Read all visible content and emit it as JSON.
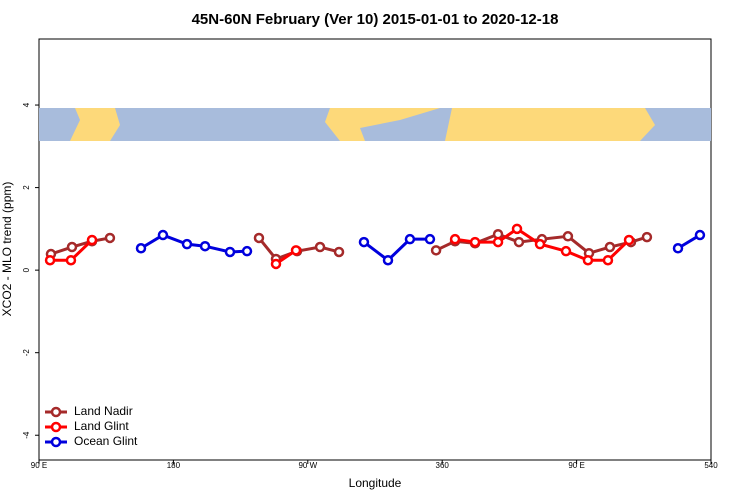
{
  "chart_data": {
    "type": "line",
    "title": "45N-60N February (Ver 10)   2015-01-01 to 2020-12-18",
    "x_label": "Longitude",
    "y_label": "XCO2 - MLO trend (ppm)",
    "xlim": [
      90,
      540
    ],
    "ylim": [
      -4.6,
      5.6
    ],
    "xticks": [
      {
        "value": 90,
        "label": "90 E"
      },
      180,
      {
        "value": 270,
        "label": "90 W"
      },
      360,
      {
        "value": 450,
        "label": "90 E"
      },
      540
    ],
    "yticks": [
      -4,
      -2,
      0,
      2,
      4
    ],
    "legend": "bottomleft",
    "series": [
      {
        "name": "Land Nadir",
        "color": "#a52a2a",
        "x": [
          98.0,
          112.1,
          125.5,
          137.5,
          null,
          237.3,
          248.7,
          262.8,
          278.2,
          290.9,
          null,
          355.9,
          368.6,
          382.0,
          397.4,
          411.4,
          426.8,
          444.2,
          458.3,
          472.3,
          486.4,
          497.1
        ],
        "values": [
          0.39,
          0.56,
          0.7,
          0.78,
          null,
          0.78,
          0.27,
          0.46,
          0.56,
          0.44,
          null,
          0.48,
          0.7,
          0.65,
          0.87,
          0.68,
          0.75,
          0.82,
          0.41,
          0.56,
          0.68,
          0.8
        ]
      },
      {
        "name": "Land Glint",
        "color": "#ff0000",
        "x": [
          97.4,
          111.4,
          125.5,
          null,
          248.7,
          262.1,
          null,
          368.6,
          382.0,
          397.4,
          410.1,
          425.5,
          442.9,
          457.6,
          471.0,
          485.1
        ],
        "values": [
          0.24,
          0.24,
          0.73,
          null,
          0.15,
          0.48,
          null,
          0.75,
          0.68,
          0.68,
          1.0,
          0.63,
          0.46,
          0.24,
          0.24,
          0.73
        ]
      },
      {
        "name": "Ocean Glint",
        "color": "#0000dd",
        "x": [
          158.3,
          173.0,
          189.1,
          201.2,
          217.9,
          229.3,
          null,
          307.6,
          323.7,
          338.4,
          351.8,
          null,
          517.9,
          532.6
        ],
        "values": [
          0.53,
          0.85,
          0.63,
          0.58,
          0.44,
          0.46,
          null,
          0.68,
          0.24,
          0.75,
          0.75,
          null,
          0.53,
          0.85
        ]
      }
    ]
  }
}
